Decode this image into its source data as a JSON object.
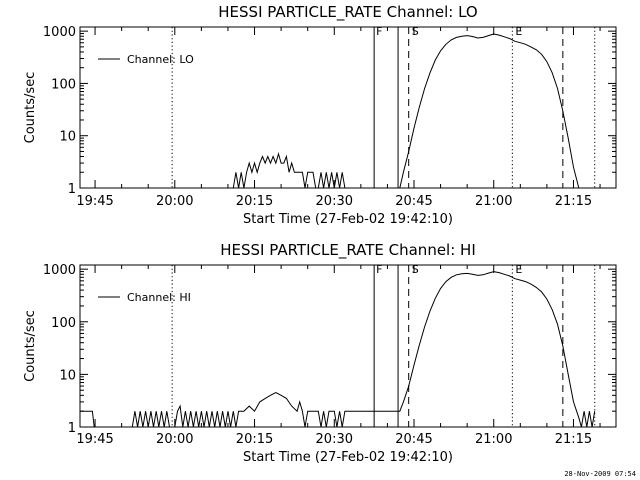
{
  "footer": {
    "timestamp": "28-Nov-2009 07:54"
  },
  "chart_data": [
    {
      "type": "line",
      "title": "HESSI PARTICLE_RATE Channel: LO",
      "xlabel": "Start Time (27-Feb-02 19:42:10)",
      "ylabel": "Counts/sec",
      "yscale": "log",
      "ylim": [
        1,
        1200
      ],
      "xlim": [
        "19:42:10",
        "21:23:00"
      ],
      "x_ticks": [
        "19:45",
        "20:00",
        "20:15",
        "20:30",
        "20:45",
        "21:00",
        "21:15"
      ],
      "y_ticks": [
        "1",
        "10",
        "100",
        "1000"
      ],
      "legend": {
        "position": "top-left",
        "entries": [
          "Channel: LO"
        ]
      },
      "series": [
        {
          "name": "Channel: LO",
          "points": [
            [
              "20:11:00",
              1
            ],
            [
              "20:11:30",
              2
            ],
            [
              "20:12:00",
              1
            ],
            [
              "20:12:30",
              2
            ],
            [
              "20:13:00",
              1
            ],
            [
              "20:13:30",
              2
            ],
            [
              "20:14:00",
              3
            ],
            [
              "20:14:30",
              2
            ],
            [
              "20:15:00",
              3
            ],
            [
              "20:15:30",
              2
            ],
            [
              "20:16:00",
              3
            ],
            [
              "20:16:30",
              4
            ],
            [
              "20:17:00",
              3
            ],
            [
              "20:17:30",
              4
            ],
            [
              "20:18:00",
              3
            ],
            [
              "20:18:30",
              4
            ],
            [
              "20:19:00",
              3
            ],
            [
              "20:19:30",
              4.5
            ],
            [
              "20:20:00",
              3
            ],
            [
              "20:20:30",
              3
            ],
            [
              "20:21:00",
              4
            ],
            [
              "20:21:30",
              2
            ],
            [
              "20:22:00",
              3
            ],
            [
              "20:22:30",
              2
            ],
            [
              "20:23:00",
              2
            ],
            [
              "20:24:00",
              2
            ],
            [
              "20:24:30",
              1
            ],
            [
              "20:25:00",
              2
            ],
            [
              "20:26:00",
              2
            ],
            [
              "20:26:30",
              1
            ],
            [
              "20:27:00",
              1
            ],
            [
              "20:27:30",
              2
            ],
            [
              "20:28:00",
              1
            ],
            [
              "20:28:30",
              2
            ],
            [
              "20:29:00",
              1
            ],
            [
              "20:29:30",
              2
            ],
            [
              "20:30:00",
              1
            ],
            [
              "20:30:30",
              2
            ],
            [
              "20:31:00",
              1
            ],
            [
              "20:31:30",
              2
            ],
            [
              "20:32:00",
              1
            ],
            [
              "20:42:20",
              1
            ],
            [
              "20:43:00",
              2
            ],
            [
              "20:44:00",
              5
            ],
            [
              "20:45:00",
              14
            ],
            [
              "20:46:00",
              35
            ],
            [
              "20:47:00",
              80
            ],
            [
              "20:48:00",
              160
            ],
            [
              "20:49:00",
              280
            ],
            [
              "20:50:00",
              420
            ],
            [
              "20:51:00",
              560
            ],
            [
              "20:52:00",
              680
            ],
            [
              "20:53:00",
              760
            ],
            [
              "20:54:00",
              800
            ],
            [
              "20:55:00",
              820
            ],
            [
              "20:56:00",
              790
            ],
            [
              "20:57:00",
              740
            ],
            [
              "20:58:00",
              760
            ],
            [
              "20:59:00",
              820
            ],
            [
              "21:00:00",
              880
            ],
            [
              "21:01:00",
              840
            ],
            [
              "21:02:00",
              780
            ],
            [
              "21:03:00",
              720
            ],
            [
              "21:04:00",
              640
            ],
            [
              "21:05:00",
              600
            ],
            [
              "21:06:00",
              560
            ],
            [
              "21:07:00",
              500
            ],
            [
              "21:08:00",
              440
            ],
            [
              "21:09:00",
              360
            ],
            [
              "21:10:00",
              260
            ],
            [
              "21:11:00",
              160
            ],
            [
              "21:12:00",
              80
            ],
            [
              "21:13:00",
              30
            ],
            [
              "21:14:00",
              9
            ],
            [
              "21:15:00",
              2.5
            ],
            [
              "21:16:00",
              1
            ]
          ]
        }
      ],
      "markers": [
        {
          "label": "F",
          "start": "20:37:30",
          "end": "20:42:00",
          "style": "solid"
        },
        {
          "label": "S",
          "time": "20:44:00",
          "style": "dashed"
        },
        {
          "label": "",
          "time": "21:13:00",
          "style": "dashed"
        },
        {
          "label": "E",
          "time": "21:03:30",
          "style": "dotted"
        },
        {
          "label": "",
          "time": "19:59:30",
          "style": "dotted"
        },
        {
          "label": "",
          "time": "21:19:00",
          "style": "dotted"
        }
      ]
    },
    {
      "type": "line",
      "title": "HESSI PARTICLE_RATE Channel: HI",
      "xlabel": "Start Time (27-Feb-02 19:42:10)",
      "ylabel": "Counts/sec",
      "yscale": "log",
      "ylim": [
        1,
        1200
      ],
      "xlim": [
        "19:42:10",
        "21:23:00"
      ],
      "x_ticks": [
        "19:45",
        "20:00",
        "20:15",
        "20:30",
        "20:45",
        "21:00",
        "21:15"
      ],
      "y_ticks": [
        "1",
        "10",
        "100",
        "1000"
      ],
      "legend": {
        "position": "top-left",
        "entries": [
          "Channel: HI"
        ]
      },
      "series": [
        {
          "name": "Channel: HI",
          "points": [
            [
              "19:42:10",
              2
            ],
            [
              "19:44:30",
              2
            ],
            [
              "19:44:50",
              1
            ],
            [
              "19:52:00",
              1
            ],
            [
              "19:52:30",
              2
            ],
            [
              "19:53:00",
              1
            ],
            [
              "19:53:30",
              2
            ],
            [
              "19:54:00",
              1
            ],
            [
              "19:54:30",
              2
            ],
            [
              "19:55:00",
              1
            ],
            [
              "19:55:30",
              2
            ],
            [
              "19:56:00",
              1
            ],
            [
              "19:56:30",
              2
            ],
            [
              "19:57:00",
              1
            ],
            [
              "19:57:30",
              2
            ],
            [
              "19:58:00",
              1
            ],
            [
              "19:58:30",
              2
            ],
            [
              "19:59:00",
              1
            ],
            [
              "19:59:30",
              1
            ],
            [
              "20:00:00",
              1
            ],
            [
              "20:00:30",
              2
            ],
            [
              "20:01:00",
              2.5
            ],
            [
              "20:01:30",
              1
            ],
            [
              "20:02:00",
              2
            ],
            [
              "20:02:30",
              1
            ],
            [
              "20:03:00",
              2
            ],
            [
              "20:03:30",
              1
            ],
            [
              "20:04:00",
              2
            ],
            [
              "20:04:30",
              1
            ],
            [
              "20:05:00",
              2
            ],
            [
              "20:05:30",
              1
            ],
            [
              "20:06:00",
              2
            ],
            [
              "20:06:30",
              1
            ],
            [
              "20:07:00",
              2
            ],
            [
              "20:07:30",
              1
            ],
            [
              "20:08:00",
              2
            ],
            [
              "20:08:30",
              1
            ],
            [
              "20:09:00",
              2
            ],
            [
              "20:09:30",
              1
            ],
            [
              "20:10:00",
              2
            ],
            [
              "20:10:30",
              1
            ],
            [
              "20:11:00",
              2
            ],
            [
              "20:11:30",
              1
            ],
            [
              "20:12:00",
              2
            ],
            [
              "20:13:00",
              2
            ],
            [
              "20:14:00",
              2.5
            ],
            [
              "20:15:00",
              2
            ],
            [
              "20:16:00",
              3
            ],
            [
              "20:17:00",
              3.5
            ],
            [
              "20:18:00",
              4
            ],
            [
              "20:19:00",
              4.5
            ],
            [
              "20:20:00",
              4
            ],
            [
              "20:21:00",
              3.5
            ],
            [
              "20:22:00",
              2.5
            ],
            [
              "20:23:00",
              2
            ],
            [
              "20:23:30",
              3
            ],
            [
              "20:24:00",
              2
            ],
            [
              "20:24:30",
              1
            ],
            [
              "20:25:00",
              2
            ],
            [
              "20:26:00",
              2
            ],
            [
              "20:27:00",
              2
            ],
            [
              "20:27:30",
              1
            ],
            [
              "20:28:00",
              2
            ],
            [
              "20:28:30",
              1
            ],
            [
              "20:29:00",
              2
            ],
            [
              "20:30:00",
              2
            ],
            [
              "20:30:30",
              1
            ],
            [
              "20:31:00",
              2
            ],
            [
              "20:31:30",
              1
            ],
            [
              "20:32:00",
              2
            ],
            [
              "20:32:30",
              2
            ],
            [
              "20:37:30",
              2
            ],
            [
              "20:42:00",
              2
            ],
            [
              "20:42:20",
              2
            ],
            [
              "20:43:00",
              3
            ],
            [
              "20:44:00",
              6
            ],
            [
              "20:45:00",
              15
            ],
            [
              "20:46:00",
              36
            ],
            [
              "20:47:00",
              80
            ],
            [
              "20:48:00",
              160
            ],
            [
              "20:49:00",
              280
            ],
            [
              "20:50:00",
              430
            ],
            [
              "20:51:00",
              580
            ],
            [
              "20:52:00",
              700
            ],
            [
              "20:53:00",
              780
            ],
            [
              "20:54:00",
              820
            ],
            [
              "20:55:00",
              830
            ],
            [
              "20:56:00",
              800
            ],
            [
              "20:57:00",
              760
            ],
            [
              "20:58:00",
              780
            ],
            [
              "20:59:00",
              840
            ],
            [
              "21:00:00",
              900
            ],
            [
              "21:01:00",
              860
            ],
            [
              "21:02:00",
              800
            ],
            [
              "21:03:00",
              740
            ],
            [
              "21:04:00",
              660
            ],
            [
              "21:05:00",
              620
            ],
            [
              "21:06:00",
              580
            ],
            [
              "21:07:00",
              520
            ],
            [
              "21:08:00",
              450
            ],
            [
              "21:09:00",
              370
            ],
            [
              "21:10:00",
              270
            ],
            [
              "21:11:00",
              170
            ],
            [
              "21:12:00",
              90
            ],
            [
              "21:13:00",
              35
            ],
            [
              "21:14:00",
              10
            ],
            [
              "21:15:00",
              3
            ],
            [
              "21:16:00",
              1.5
            ],
            [
              "21:16:30",
              1
            ],
            [
              "21:17:00",
              2
            ],
            [
              "21:17:30",
              1
            ],
            [
              "21:18:00",
              2
            ],
            [
              "21:18:30",
              1
            ],
            [
              "21:19:00",
              2
            ]
          ]
        }
      ],
      "markers": [
        {
          "label": "F",
          "start": "20:37:30",
          "end": "20:42:00",
          "style": "solid"
        },
        {
          "label": "S",
          "time": "20:44:00",
          "style": "dashed"
        },
        {
          "label": "",
          "time": "21:13:00",
          "style": "dashed"
        },
        {
          "label": "E",
          "time": "21:03:30",
          "style": "dotted"
        },
        {
          "label": "",
          "time": "19:59:30",
          "style": "dotted"
        },
        {
          "label": "",
          "time": "21:19:00",
          "style": "dotted"
        }
      ]
    }
  ]
}
